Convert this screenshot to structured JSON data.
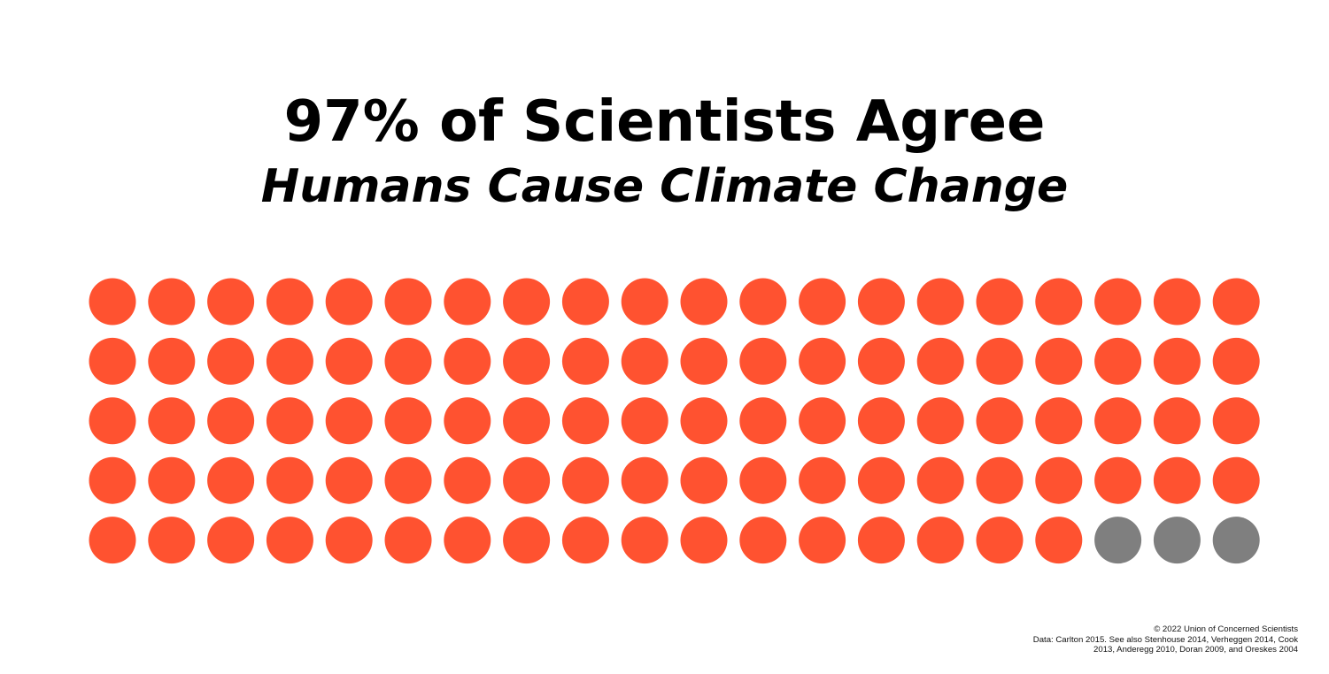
{
  "header": {
    "title": "97% of Scientists Agree",
    "subtitle": "Humans Cause Climate Change"
  },
  "chart_data": {
    "type": "waffle",
    "rows": 5,
    "columns": 20,
    "total": 100,
    "agree_count": 97,
    "disagree_count": 3,
    "colors": {
      "agree": "#FF5230",
      "disagree": "#7F7F7F"
    }
  },
  "footer": {
    "copyright": "© 2022 Union of Concerned Scientists",
    "data_line_1": "Data: Carlton 2015. See also Stenhouse 2014, Verheggen 2014, Cook",
    "data_line_2": "2013, Anderegg 2010, Doran 2009, and Oreskes 2004"
  }
}
